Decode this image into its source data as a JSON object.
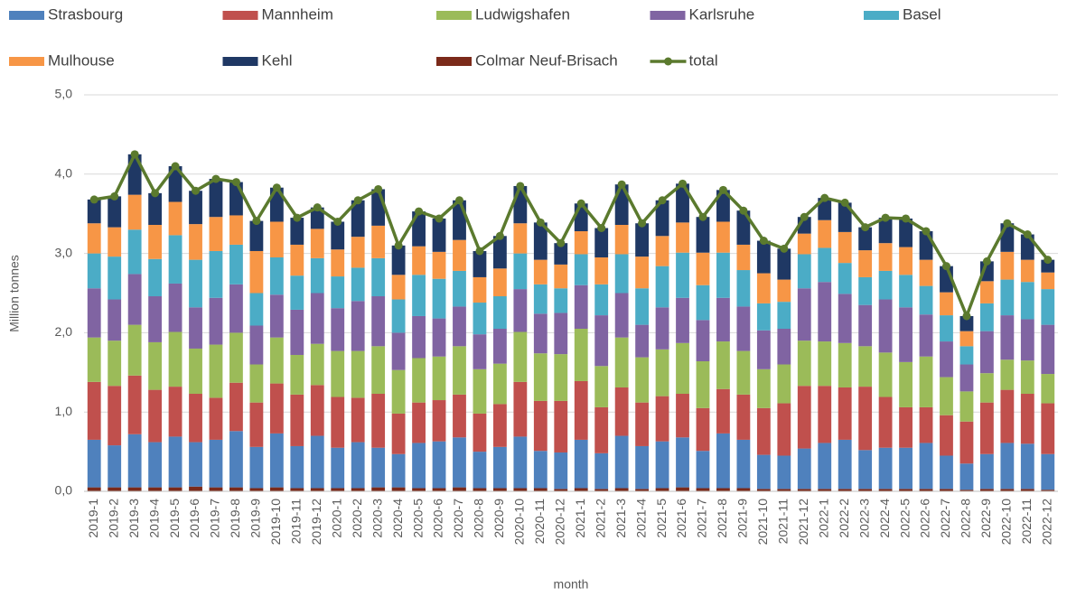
{
  "chart_data": {
    "type": "stacked-bar-line",
    "x_label": "month",
    "y_label": "Million tonnes",
    "categories": [
      "2019-1",
      "2019-2",
      "2019-3",
      "2019-4",
      "2019-5",
      "2019-6",
      "2019-7",
      "2019-8",
      "2019-9",
      "2019-10",
      "2019-11",
      "2019-12",
      "2020-1",
      "2020-2",
      "2020-3",
      "2020-4",
      "2020-5",
      "2020-6",
      "2020-7",
      "2020-8",
      "2020-9",
      "2020-10",
      "2020-11",
      "2020-12",
      "2021-1",
      "2021-2",
      "2021-3",
      "2021-4",
      "2021-5",
      "2021-6",
      "2021-7",
      "2021-8",
      "2021-9",
      "2021-10",
      "2021-11",
      "2021-12",
      "2022-1",
      "2022-2",
      "2022-3",
      "2022-4",
      "2022-5",
      "2022-6",
      "2022-7",
      "2022-8",
      "2022-9",
      "2022-10",
      "2022-11",
      "2022-12"
    ],
    "ylim": [
      0,
      5
    ],
    "yticks": [
      {
        "value": 0,
        "label": "0,0"
      },
      {
        "value": 1,
        "label": "1,0"
      },
      {
        "value": 2,
        "label": "2,0"
      },
      {
        "value": 3,
        "label": "3,0"
      },
      {
        "value": 4,
        "label": "4,0"
      },
      {
        "value": 5,
        "label": "5,0"
      }
    ],
    "grid": true,
    "legend": "top",
    "series": [
      {
        "name": "Strasbourg",
        "color": "#4f81bd",
        "values": [
          0.6,
          0.53,
          0.67,
          0.57,
          0.64,
          0.56,
          0.6,
          0.71,
          0.52,
          0.68,
          0.53,
          0.66,
          0.51,
          0.58,
          0.5,
          0.42,
          0.57,
          0.59,
          0.63,
          0.46,
          0.52,
          0.65,
          0.47,
          0.46,
          0.61,
          0.45,
          0.66,
          0.54,
          0.59,
          0.63,
          0.47,
          0.69,
          0.61,
          0.43,
          0.42,
          0.51,
          0.58,
          0.62,
          0.49,
          0.52,
          0.52,
          0.58,
          0.42,
          0.33,
          0.44,
          0.58,
          0.57,
          0.45
        ]
      },
      {
        "name": "Mannheim",
        "color": "#c0504d",
        "values": [
          0.73,
          0.75,
          0.74,
          0.66,
          0.63,
          0.61,
          0.53,
          0.61,
          0.56,
          0.63,
          0.65,
          0.64,
          0.64,
          0.56,
          0.68,
          0.51,
          0.51,
          0.52,
          0.54,
          0.48,
          0.54,
          0.69,
          0.63,
          0.65,
          0.74,
          0.58,
          0.61,
          0.55,
          0.57,
          0.55,
          0.54,
          0.56,
          0.57,
          0.59,
          0.66,
          0.79,
          0.72,
          0.66,
          0.8,
          0.64,
          0.51,
          0.45,
          0.51,
          0.53,
          0.65,
          0.67,
          0.63,
          0.64
        ]
      },
      {
        "name": "Ludwigshafen",
        "color": "#9bbb59",
        "values": [
          0.56,
          0.57,
          0.64,
          0.6,
          0.69,
          0.57,
          0.67,
          0.63,
          0.48,
          0.58,
          0.5,
          0.52,
          0.58,
          0.59,
          0.6,
          0.55,
          0.56,
          0.55,
          0.61,
          0.56,
          0.51,
          0.63,
          0.6,
          0.59,
          0.66,
          0.52,
          0.63,
          0.57,
          0.59,
          0.64,
          0.59,
          0.6,
          0.55,
          0.49,
          0.49,
          0.57,
          0.56,
          0.56,
          0.51,
          0.56,
          0.57,
          0.64,
          0.48,
          0.38,
          0.37,
          0.38,
          0.42,
          0.37
        ]
      },
      {
        "name": "Karlsruhe",
        "color": "#8064a2",
        "values": [
          0.62,
          0.52,
          0.64,
          0.58,
          0.61,
          0.52,
          0.59,
          0.61,
          0.49,
          0.54,
          0.57,
          0.64,
          0.54,
          0.63,
          0.63,
          0.47,
          0.53,
          0.48,
          0.5,
          0.44,
          0.44,
          0.54,
          0.5,
          0.52,
          0.55,
          0.64,
          0.56,
          0.41,
          0.53,
          0.57,
          0.52,
          0.55,
          0.56,
          0.49,
          0.45,
          0.66,
          0.75,
          0.62,
          0.52,
          0.67,
          0.69,
          0.53,
          0.45,
          0.34,
          0.53,
          0.56,
          0.52,
          0.62
        ]
      },
      {
        "name": "Basel",
        "color": "#4bacc6",
        "values": [
          0.44,
          0.54,
          0.56,
          0.47,
          0.61,
          0.6,
          0.59,
          0.5,
          0.41,
          0.47,
          0.43,
          0.44,
          0.4,
          0.42,
          0.48,
          0.42,
          0.52,
          0.5,
          0.45,
          0.4,
          0.41,
          0.45,
          0.37,
          0.31,
          0.39,
          0.39,
          0.49,
          0.46,
          0.52,
          0.57,
          0.44,
          0.57,
          0.46,
          0.34,
          0.34,
          0.43,
          0.43,
          0.39,
          0.35,
          0.36,
          0.41,
          0.36,
          0.33,
          0.23,
          0.35,
          0.45,
          0.47,
          0.45
        ]
      },
      {
        "name": "Mulhouse",
        "color": "#f79646",
        "values": [
          0.38,
          0.37,
          0.44,
          0.43,
          0.42,
          0.45,
          0.43,
          0.37,
          0.53,
          0.45,
          0.39,
          0.37,
          0.34,
          0.39,
          0.41,
          0.31,
          0.36,
          0.34,
          0.39,
          0.32,
          0.35,
          0.38,
          0.31,
          0.3,
          0.29,
          0.34,
          0.37,
          0.4,
          0.38,
          0.38,
          0.41,
          0.39,
          0.32,
          0.38,
          0.28,
          0.26,
          0.35,
          0.39,
          0.34,
          0.35,
          0.35,
          0.33,
          0.29,
          0.19,
          0.28,
          0.35,
          0.28,
          0.21
        ]
      },
      {
        "name": "Kehl",
        "color": "#1f3864",
        "values": [
          0.3,
          0.39,
          0.51,
          0.4,
          0.45,
          0.42,
          0.48,
          0.42,
          0.38,
          0.43,
          0.34,
          0.27,
          0.35,
          0.46,
          0.46,
          0.37,
          0.44,
          0.42,
          0.5,
          0.33,
          0.41,
          0.47,
          0.47,
          0.27,
          0.35,
          0.37,
          0.51,
          0.42,
          0.45,
          0.49,
          0.45,
          0.4,
          0.43,
          0.41,
          0.39,
          0.21,
          0.28,
          0.37,
          0.29,
          0.32,
          0.36,
          0.36,
          0.33,
          0.19,
          0.25,
          0.36,
          0.32,
          0.16
        ]
      },
      {
        "name": "Colmar Neuf-Brisach",
        "color": "#7b2a1a",
        "values": [
          0.05,
          0.05,
          0.05,
          0.05,
          0.05,
          0.06,
          0.05,
          0.05,
          0.04,
          0.05,
          0.04,
          0.04,
          0.04,
          0.04,
          0.05,
          0.05,
          0.04,
          0.04,
          0.05,
          0.04,
          0.04,
          0.04,
          0.04,
          0.03,
          0.04,
          0.03,
          0.04,
          0.03,
          0.04,
          0.05,
          0.04,
          0.04,
          0.04,
          0.03,
          0.03,
          0.03,
          0.03,
          0.03,
          0.03,
          0.03,
          0.03,
          0.03,
          0.03,
          0.02,
          0.03,
          0.03,
          0.03,
          0.02
        ]
      },
      {
        "name": "total",
        "color": "#5b7a2e",
        "type": "line",
        "values": [
          3.68,
          3.72,
          4.25,
          3.76,
          4.1,
          3.79,
          3.94,
          3.9,
          3.41,
          3.83,
          3.45,
          3.58,
          3.4,
          3.67,
          3.81,
          3.1,
          3.53,
          3.44,
          3.67,
          3.03,
          3.22,
          3.85,
          3.39,
          3.13,
          3.63,
          3.32,
          3.87,
          3.38,
          3.67,
          3.88,
          3.46,
          3.8,
          3.54,
          3.16,
          3.06,
          3.46,
          3.7,
          3.64,
          3.33,
          3.45,
          3.44,
          3.28,
          2.84,
          2.21,
          2.9,
          3.38,
          3.24,
          2.92
        ]
      }
    ]
  }
}
